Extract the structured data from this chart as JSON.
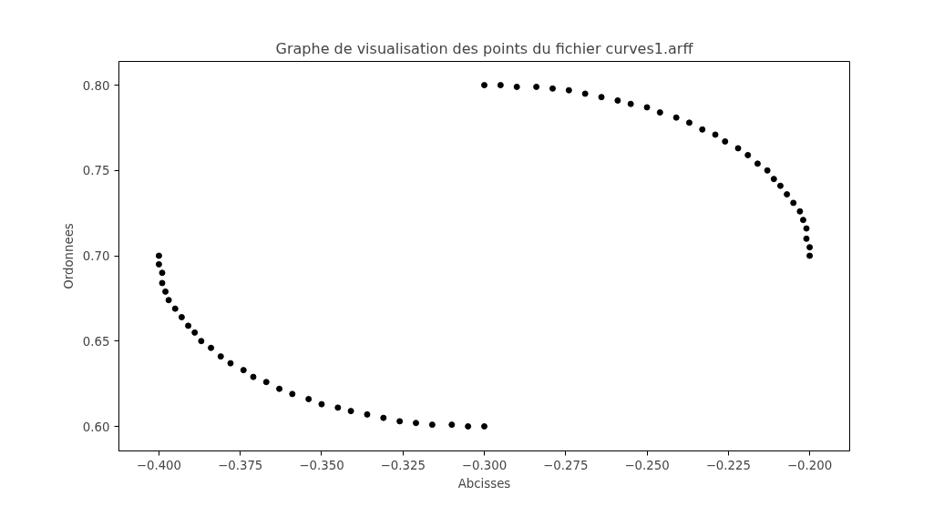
{
  "chart_data": {
    "type": "scatter",
    "title": "Graphe de visualisation des points du fichier curves1.arff",
    "xlabel": "Abcisses",
    "ylabel": "Ordonnees",
    "marker": "circle",
    "grid": false,
    "xlim": [
      -0.4123,
      -0.1877
    ],
    "ylim": [
      0.5856,
      0.8139
    ],
    "xticks": [
      {
        "value": -0.4,
        "label": "−0.400"
      },
      {
        "value": -0.375,
        "label": "−0.375"
      },
      {
        "value": -0.35,
        "label": "−0.350"
      },
      {
        "value": -0.325,
        "label": "−0.325"
      },
      {
        "value": -0.3,
        "label": "−0.300"
      },
      {
        "value": -0.275,
        "label": "−0.275"
      },
      {
        "value": -0.25,
        "label": "−0.250"
      },
      {
        "value": -0.225,
        "label": "−0.225"
      },
      {
        "value": -0.2,
        "label": "−0.200"
      }
    ],
    "yticks": [
      {
        "value": 0.6,
        "label": "0.60"
      },
      {
        "value": 0.65,
        "label": "0.65"
      },
      {
        "value": 0.7,
        "label": "0.70"
      },
      {
        "value": 0.75,
        "label": "0.75"
      },
      {
        "value": 0.8,
        "label": "0.80"
      }
    ],
    "series": [
      {
        "color": "#000000",
        "x": [
          -0.3,
          -0.295,
          -0.29,
          -0.284,
          -0.279,
          -0.274,
          -0.269,
          -0.264,
          -0.259,
          -0.255,
          -0.25,
          -0.246,
          -0.241,
          -0.237,
          -0.233,
          -0.229,
          -0.226,
          -0.222,
          -0.219,
          -0.216,
          -0.213,
          -0.211,
          -0.209,
          -0.207,
          -0.205,
          -0.203,
          -0.202,
          -0.201,
          -0.201,
          -0.2,
          -0.2,
          -0.4,
          -0.4,
          -0.399,
          -0.399,
          -0.398,
          -0.397,
          -0.395,
          -0.393,
          -0.391,
          -0.389,
          -0.387,
          -0.384,
          -0.381,
          -0.378,
          -0.374,
          -0.371,
          -0.367,
          -0.363,
          -0.359,
          -0.354,
          -0.35,
          -0.345,
          -0.341,
          -0.336,
          -0.331,
          -0.326,
          -0.321,
          -0.316,
          -0.31,
          -0.305,
          -0.3
        ],
        "values": [
          0.8,
          0.8,
          0.799,
          0.799,
          0.798,
          0.797,
          0.795,
          0.793,
          0.791,
          0.789,
          0.787,
          0.784,
          0.781,
          0.778,
          0.774,
          0.771,
          0.767,
          0.763,
          0.759,
          0.754,
          0.75,
          0.745,
          0.741,
          0.736,
          0.731,
          0.726,
          0.721,
          0.716,
          0.71,
          0.705,
          0.7,
          0.7,
          0.695,
          0.69,
          0.684,
          0.679,
          0.674,
          0.669,
          0.664,
          0.659,
          0.655,
          0.65,
          0.646,
          0.641,
          0.637,
          0.633,
          0.629,
          0.626,
          0.622,
          0.619,
          0.616,
          0.613,
          0.611,
          0.609,
          0.607,
          0.605,
          0.603,
          0.602,
          0.601,
          0.601,
          0.6,
          0.6
        ]
      }
    ]
  }
}
